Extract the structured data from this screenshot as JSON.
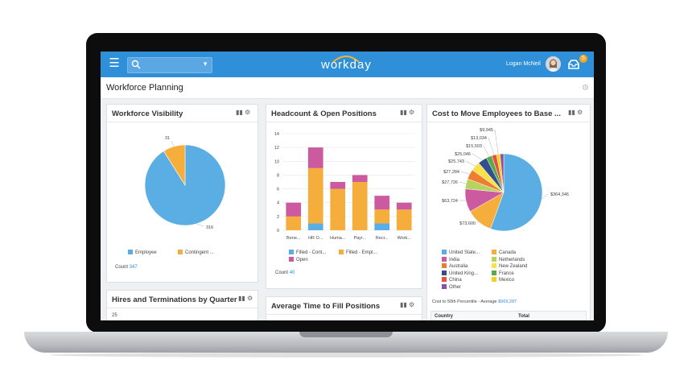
{
  "topbar": {
    "app_name": "workday",
    "user_name": "Logan McNeil",
    "inbox_count": "5",
    "colors": {
      "bar": "#2f8fd8",
      "badge": "#f5a623"
    }
  },
  "page": {
    "title": "Workforce Planning"
  },
  "cards": {
    "visibility": {
      "title": "Workforce Visibility",
      "count_label": "Count",
      "count_value": "347",
      "legend": [
        "Employee",
        "Contingent ..."
      ]
    },
    "headcount": {
      "title": "Headcount & Open Positions",
      "count_label": "Count",
      "count_value": "40",
      "legend": [
        "Filled - Cont...",
        "Filled - Empl...",
        "Open"
      ]
    },
    "cost": {
      "title": "Cost to Move Employees to Base ...",
      "footer_label": "Cost to 50th Percentile - Average",
      "footer_value": "$669,287",
      "table_headers": [
        "Country",
        "Total"
      ],
      "legend": [
        "United State...",
        "Canada",
        "India",
        "Netherlands",
        "Australia",
        "New Zealand",
        "United King...",
        "France",
        "China",
        "Mexico",
        "Other"
      ]
    },
    "hires": {
      "title": "Hires and Terminations by Quarter",
      "axis_top": "25"
    },
    "fill_time": {
      "title": "Average Time to Fill Positions"
    }
  },
  "chart_data": [
    {
      "type": "pie",
      "labels": [
        "Employee",
        "Contingent Worker"
      ],
      "values": [
        316,
        31
      ],
      "colors": [
        "#5aaee3",
        "#f5ae3c"
      ]
    },
    {
      "type": "bar",
      "stacked": true,
      "categories": [
        "Bene...",
        "HR O...",
        "Huma...",
        "Payr...",
        "Recr...",
        "Work..."
      ],
      "series": [
        {
          "name": "Filled - Cont...",
          "color": "#5aaee3",
          "values": [
            0,
            1,
            0,
            0,
            1,
            0
          ]
        },
        {
          "name": "Filled - Empl...",
          "color": "#f5ae3c",
          "values": [
            2,
            8,
            6,
            7,
            2,
            3
          ]
        },
        {
          "name": "Open",
          "color": "#cc5a9f",
          "values": [
            2,
            3,
            1,
            1,
            2,
            1
          ]
        }
      ],
      "ylim": [
        0,
        14
      ],
      "yticks": [
        0,
        2,
        4,
        6,
        8,
        10,
        12,
        14
      ],
      "grid": true
    },
    {
      "type": "pie",
      "labels": [
        "United State...",
        "Canada",
        "India",
        "Netherlands",
        "Australia",
        "New Zealand",
        "United King...",
        "France",
        "China",
        "Mexico",
        "Other"
      ],
      "values": [
        364346,
        73600,
        63724,
        27726,
        27284,
        25743,
        25046,
        15503,
        13034,
        9945,
        9945
      ],
      "value_labels": [
        "$364,346",
        "$73,600",
        "$63,724",
        "$27,726",
        "$27,284",
        "$25,743",
        "$25,046",
        "$15,503",
        "$13,034",
        "$9,945",
        ""
      ],
      "colors": [
        "#5aaee3",
        "#f5ae3c",
        "#cc5a9f",
        "#b5d35e",
        "#ee7d2f",
        "#fae14a",
        "#2f4f8f",
        "#5aab4a",
        "#e9503f",
        "#f4d21e",
        "#8e4fa0"
      ]
    }
  ]
}
